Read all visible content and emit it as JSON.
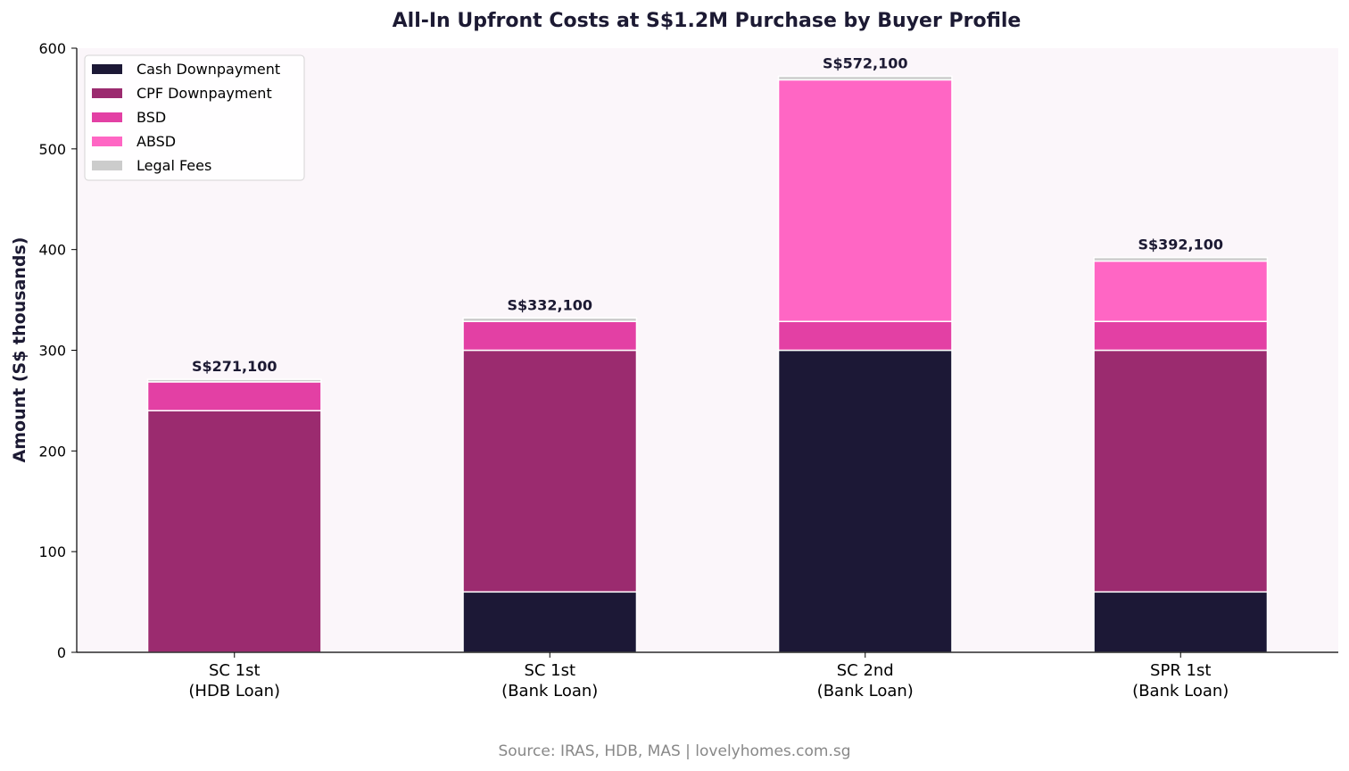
{
  "chart_data": {
    "type": "bar",
    "stacked": true,
    "title": "All-In Upfront Costs at S$1.2M Purchase by Buyer Profile",
    "xlabel": "",
    "ylabel": "Amount (S$ thousands)",
    "ylim": [
      0,
      600
    ],
    "yticks": [
      0,
      100,
      200,
      300,
      400,
      500,
      600
    ],
    "categories": [
      [
        "SC 1st",
        "(HDB Loan)"
      ],
      [
        "SC 1st",
        "(Bank Loan)"
      ],
      [
        "SC 2nd",
        "(Bank Loan)"
      ],
      [
        "SPR 1st",
        "(Bank Loan)"
      ]
    ],
    "series": [
      {
        "name": "Cash Downpayment",
        "color": "#1c1836",
        "values": [
          0,
          60,
          300,
          60
        ]
      },
      {
        "name": "CPF Downpayment",
        "color": "#9b2b6f",
        "values": [
          240,
          240,
          0,
          240
        ]
      },
      {
        "name": "BSD",
        "color": "#e340a4",
        "values": [
          28.6,
          28.6,
          28.6,
          28.6
        ]
      },
      {
        "name": "ABSD",
        "color": "#ff66c4",
        "values": [
          0,
          0,
          240,
          60
        ]
      },
      {
        "name": "Legal Fees",
        "color": "#cccccc",
        "values": [
          2.5,
          3.5,
          3.5,
          3.5
        ]
      }
    ],
    "totals": [
      "S$271,100",
      "S$332,100",
      "S$572,100",
      "S$392,100"
    ],
    "legend": "top-left",
    "grid": false,
    "plot_background": "#fbf6fa"
  },
  "source": "Source: IRAS, HDB, MAS | lovelyhomes.com.sg"
}
